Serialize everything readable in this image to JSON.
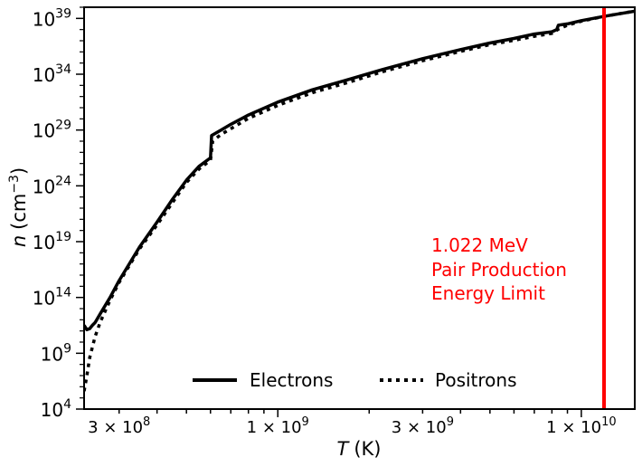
{
  "chart_data": {
    "type": "line",
    "xlabel": "T",
    "xlabel_unit": "(K)",
    "ylabel": "n",
    "ylabel_unit_open": "(cm",
    "ylabel_unit_exp": "−3",
    "ylabel_unit_close": ")",
    "x_scale": "log",
    "y_scale": "log",
    "xlim": [
      230000000,
      15000000000
    ],
    "ylim": [
      10000.0,
      1e+40
    ],
    "x_ticks": [
      {
        "value": 300000000,
        "mantissa": "3",
        "times": "×",
        "base": "10",
        "exp": "8"
      },
      {
        "value": 1000000000,
        "mantissa": "1",
        "times": "×",
        "base": "10",
        "exp": "9"
      },
      {
        "value": 3000000000,
        "mantissa": "3",
        "times": "×",
        "base": "10",
        "exp": "9"
      },
      {
        "value": 10000000000,
        "mantissa": "1",
        "times": "×",
        "base": "10",
        "exp": "10"
      }
    ],
    "y_ticks": [
      {
        "value": 10000.0,
        "base": "10",
        "exp": "4"
      },
      {
        "value": 1000000000.0,
        "base": "10",
        "exp": "9"
      },
      {
        "value": 100000000000000.0,
        "base": "10",
        "exp": "14"
      },
      {
        "value": 1e+19,
        "base": "10",
        "exp": "19"
      },
      {
        "value": 1e+24,
        "base": "10",
        "exp": "24"
      },
      {
        "value": 1e+29,
        "base": "10",
        "exp": "29"
      },
      {
        "value": 1e+34,
        "base": "10",
        "exp": "34"
      },
      {
        "value": 1e+39,
        "base": "10",
        "exp": "39"
      }
    ],
    "grid": false,
    "legend_placement": "bottom-center",
    "series": [
      {
        "name": "Electrons",
        "style": "solid",
        "color": "#000000",
        "x": [
          230000000,
          235000000,
          240000000,
          245000000,
          250000000,
          260000000,
          280000000,
          300000000,
          350000000,
          400000000,
          450000000,
          500000000,
          550000000,
          600000000,
          605000000,
          650000000,
          700000000,
          800000000,
          1000000000,
          1300000000,
          1700000000,
          2200000000,
          3000000000,
          4000000000,
          5000000000,
          6000000000,
          7000000000,
          8000000000,
          8300000000,
          8400000000,
          9000000000,
          10000000000,
          12000000000,
          15000000000
        ],
        "y": [
          320000000000.0,
          130000000000.0,
          160000000000.0,
          320000000000.0,
          560000000000.0,
          3500000000000.0,
          100000000000000.0,
          3200000000000000.0,
          3.2e+18,
          5.6e+20,
          6.3e+22,
          3.2e+24,
          5.6e+25,
          3.2e+26,
          3.2e+28,
          1e+29,
          3.2e+29,
          2.2e+30,
          3.2e+31,
          4e+32,
          3.2e+33,
          2.5e+34,
          2.5e+35,
          1.6e+36,
          6.3e+36,
          1.6e+37,
          4e+37,
          6.3e+37,
          1e+38,
          2.5e+38,
          3.2e+38,
          6.3e+38,
          1.6e+39,
          4.5e+39
        ]
      },
      {
        "name": "Positrons",
        "style": "dotted",
        "color": "#000000",
        "x": [
          230000000,
          235000000,
          240000000,
          250000000,
          260000000,
          280000000,
          300000000,
          350000000,
          400000000,
          450000000,
          500000000,
          550000000,
          600000000,
          610000000,
          650000000,
          700000000,
          800000000,
          1000000000,
          1300000000,
          1700000000,
          2200000000,
          3000000000,
          4000000000,
          5000000000,
          6000000000,
          7000000000,
          8000000000,
          8400000000,
          9000000000,
          10000000000,
          12000000000,
          15000000000
        ],
        "y": [
          400000.0,
          10000000.0,
          400000000.0,
          32000000000.0,
          630000000000.0,
          56000000000000.0,
          2200000000000000.0,
          2.2e+18,
          3.2e+20,
          3.2e+22,
          2e+24,
          3.2e+25,
          2e+26,
          1e+28,
          4e+28,
          1.3e+29,
          1.1e+30,
          1.6e+31,
          2.2e+32,
          1.8e+33,
          1.6e+34,
          1.6e+35,
          1.1e+36,
          4.5e+36,
          1.1e+37,
          2.5e+37,
          4.5e+37,
          1.1e+38,
          2.5e+38,
          5.6e+38,
          1.6e+39,
          4.5e+39
        ]
      }
    ],
    "vline": {
      "x": 11880000000,
      "color": "#ff0000"
    },
    "annotation": {
      "lines": [
        "1.022 MeV",
        "Pair Production",
        "Energy Limit"
      ],
      "color": "#ff0000"
    }
  }
}
